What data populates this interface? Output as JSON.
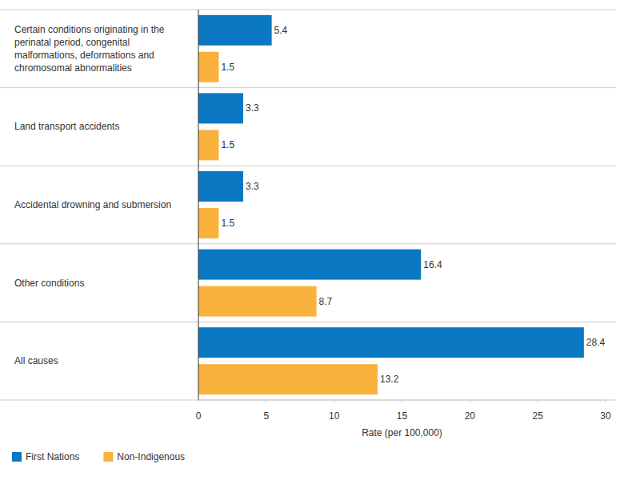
{
  "chart_data": {
    "type": "bar",
    "orientation": "horizontal",
    "categories": [
      "Certain conditions originating in the perinatal period, congenital malformations, deformations and chromosomal abnormalities",
      "Land transport accidents",
      "Accidental drowning and submersion",
      "Other conditions",
      "All causes"
    ],
    "series": [
      {
        "name": "First Nations",
        "color": "#0a78c2",
        "values": [
          5.4,
          3.3,
          3.3,
          16.4,
          28.4
        ]
      },
      {
        "name": "Non-Indigenous",
        "color": "#f9b23c",
        "values": [
          1.5,
          1.5,
          1.5,
          8.7,
          13.2
        ]
      }
    ],
    "x_label": "Rate (per 100,000)",
    "xlim": [
      0,
      30
    ],
    "xticks": [
      0,
      5,
      10,
      15,
      20,
      25,
      30
    ],
    "grid": false,
    "data_labels": true,
    "legend": "bottom-left"
  }
}
